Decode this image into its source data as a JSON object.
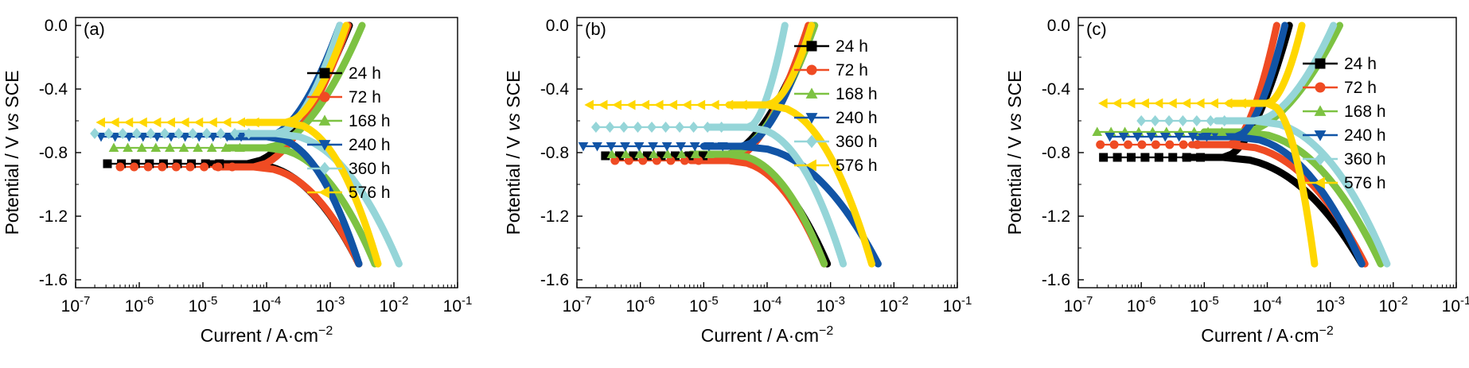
{
  "figure": {
    "colors": {
      "24 h": "#000000",
      "72 h": "#ef4b23",
      "168 h": "#7dc242",
      "240 h": "#1154a6",
      "360 h": "#95d5d8",
      "576 h": "#ffd700"
    },
    "axis_labels": {
      "ylabel_prefix": "Potential / V ",
      "ylabel_vs": "vs",
      "ylabel_suffix": " SCE",
      "xlabel_main": "Current / A·cm",
      "xlabel_exp": "−2"
    }
  },
  "chart_data": [
    {
      "panel": "(a)",
      "type": "line",
      "xscale": "log",
      "xlim_exp": [
        -7,
        -1
      ],
      "x_tick_exps": [
        -7,
        -6,
        -5,
        -4,
        -3,
        -2,
        -1
      ],
      "y_ticks": [
        "0.0",
        "-0.4",
        "-0.8",
        "-1.2",
        "-1.6"
      ],
      "ylim": [
        -1.65,
        0.05
      ],
      "xlabel": "Current / A·cm−2",
      "ylabel": "Potential / V vs SCE",
      "legend": "right",
      "series": [
        {
          "name": "24 h",
          "marker": "square",
          "marker_start_exp": -6.5,
          "Ecorr": -0.87,
          "icorr_exp": -4.3,
          "anodic_top_exp": -2.7,
          "cathodic_bottom_exp": -2.55
        },
        {
          "name": "72 h",
          "marker": "circle",
          "marker_start_exp": -6.3,
          "Ecorr": -0.89,
          "icorr_exp": -4.2,
          "anodic_top_exp": -2.72,
          "cathodic_bottom_exp": -2.55
        },
        {
          "name": "168 h",
          "marker": "triangle-up",
          "marker_start_exp": -6.4,
          "Ecorr": -0.77,
          "icorr_exp": -4.0,
          "anodic_top_exp": -2.5,
          "cathodic_bottom_exp": -2.3
        },
        {
          "name": "240 h",
          "marker": "triangle-down",
          "marker_start_exp": -6.6,
          "Ecorr": -0.7,
          "icorr_exp": -4.0,
          "anodic_top_exp": -2.85,
          "cathodic_bottom_exp": -2.55
        },
        {
          "name": "360 h",
          "marker": "diamond",
          "marker_start_exp": -6.7,
          "Ecorr": -0.68,
          "icorr_exp": -3.85,
          "anodic_top_exp": -2.85,
          "cathodic_bottom_exp": -1.92
        },
        {
          "name": "576 h",
          "marker": "triangle-left",
          "marker_start_exp": -6.6,
          "Ecorr": -0.61,
          "icorr_exp": -3.7,
          "anodic_top_exp": -2.75,
          "cathodic_bottom_exp": -2.25
        }
      ]
    },
    {
      "panel": "(b)",
      "type": "line",
      "xscale": "log",
      "xlim_exp": [
        -7,
        -1
      ],
      "x_tick_exps": [
        -7,
        -6,
        -5,
        -4,
        -3,
        -2,
        -1
      ],
      "y_ticks": [
        "0.0",
        "-0.4",
        "-0.8",
        "-1.2",
        "-1.6"
      ],
      "ylim": [
        -1.65,
        0.05
      ],
      "xlabel": "Current / A·cm−2",
      "ylabel": "Potential / V vs SCE",
      "legend": "top-right",
      "series": [
        {
          "name": "24 h",
          "marker": "square",
          "marker_start_exp": -6.55,
          "Ecorr": -0.82,
          "icorr_exp": -4.7,
          "anodic_top_exp": -3.3,
          "cathodic_bottom_exp": -3.05
        },
        {
          "name": "72 h",
          "marker": "circle",
          "marker_start_exp": -6.4,
          "Ecorr": -0.85,
          "icorr_exp": -4.6,
          "anodic_top_exp": -3.35,
          "cathodic_bottom_exp": -3.1
        },
        {
          "name": "168 h",
          "marker": "triangle-up",
          "marker_start_exp": -6.45,
          "Ecorr": -0.81,
          "icorr_exp": -4.6,
          "anodic_top_exp": -3.25,
          "cathodic_bottom_exp": -3.1
        },
        {
          "name": "240 h",
          "marker": "triangle-down",
          "marker_start_exp": -6.9,
          "Ecorr": -0.76,
          "icorr_exp": -4.4,
          "anodic_top_exp": -3.3,
          "cathodic_bottom_exp": -2.25
        },
        {
          "name": "360 h",
          "marker": "diamond",
          "marker_start_exp": -6.7,
          "Ecorr": -0.64,
          "icorr_exp": -4.3,
          "anodic_top_exp": -3.72,
          "cathodic_bottom_exp": -2.8
        },
        {
          "name": "576 h",
          "marker": "triangle-left",
          "marker_start_exp": -6.8,
          "Ecorr": -0.5,
          "icorr_exp": -4.0,
          "anodic_top_exp": -3.3,
          "cathodic_bottom_exp": -2.35
        }
      ]
    },
    {
      "panel": "(c)",
      "type": "line",
      "xscale": "log",
      "xlim_exp": [
        -7,
        -1
      ],
      "x_tick_exps": [
        -7,
        -6,
        -5,
        -4,
        -3,
        -2,
        -1
      ],
      "y_ticks": [
        "0.0",
        "-0.4",
        "-0.8",
        "-1.2",
        "-1.6"
      ],
      "ylim": [
        -1.65,
        0.05
      ],
      "xlabel": "Current / A·cm−2",
      "ylabel": "Potential / V vs SCE",
      "legend": "top-right",
      "series": [
        {
          "name": "24 h",
          "marker": "square",
          "marker_start_exp": -6.6,
          "Ecorr": -0.83,
          "icorr_exp": -4.7,
          "anodic_top_exp": -3.65,
          "cathodic_bottom_exp": -2.5
        },
        {
          "name": "72 h",
          "marker": "circle",
          "marker_start_exp": -6.65,
          "Ecorr": -0.75,
          "icorr_exp": -4.6,
          "anodic_top_exp": -3.85,
          "cathodic_bottom_exp": -2.45
        },
        {
          "name": "168 h",
          "marker": "triangle-up",
          "marker_start_exp": -6.7,
          "Ecorr": -0.67,
          "icorr_exp": -4.4,
          "anodic_top_exp": -2.85,
          "cathodic_bottom_exp": -2.2
        },
        {
          "name": "240 h",
          "marker": "triangle-down",
          "marker_start_exp": -6.5,
          "Ecorr": -0.7,
          "icorr_exp": -4.5,
          "anodic_top_exp": -3.72,
          "cathodic_bottom_exp": -2.5
        },
        {
          "name": "360 h",
          "marker": "diamond",
          "marker_start_exp": -6.0,
          "Ecorr": -0.6,
          "icorr_exp": -4.2,
          "anodic_top_exp": -2.95,
          "cathodic_bottom_exp": -2.1
        },
        {
          "name": "576 h",
          "marker": "triangle-left",
          "marker_start_exp": -6.6,
          "Ecorr": -0.49,
          "icorr_exp": -4.0,
          "anodic_top_exp": -3.45,
          "cathodic_bottom_exp": -3.25
        }
      ]
    }
  ]
}
